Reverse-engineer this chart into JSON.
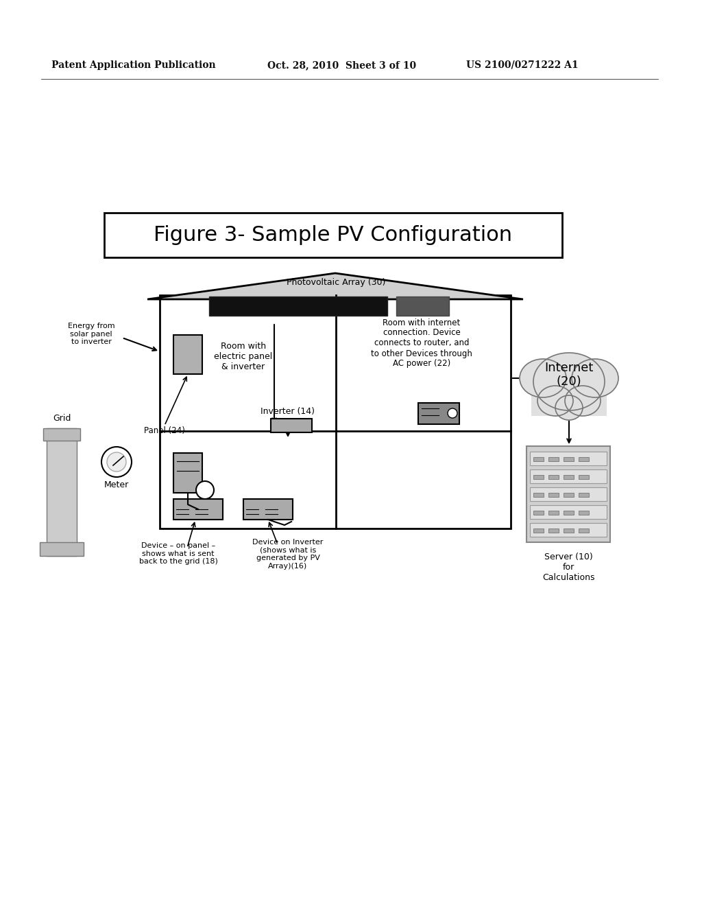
{
  "bg_color": "#ffffff",
  "header_left": "Patent Application Publication",
  "header_mid": "Oct. 28, 2010  Sheet 3 of 10",
  "header_right": "US 2100/0271222 A1",
  "title_text": "Figure 3- Sample PV Configuration",
  "pv_label": "Photovoltaic Array (30)",
  "energy_label": "Energy from\nsolar panel\nto inverter",
  "room1_label": "Room with\nelectric panel\n& inverter",
  "inverter_label": "Inverter (14)",
  "room2_label": "Room with internet\nconnection. Device\nconnects to router, and\nto other Devices through\nAC power (22)",
  "internet_label": "Internet\n(20)",
  "grid_label": "Grid",
  "panel_label": "Panel (24)",
  "meter_label": "Meter",
  "device1_label": "Device – on panel –\nshows what is sent\nback to the grid (18)",
  "device2_label": "Device on Inverter\n(shows what is\ngenerated by PV\nArray)(16)",
  "server_label": "Server (10)\nfor\nCalculations"
}
